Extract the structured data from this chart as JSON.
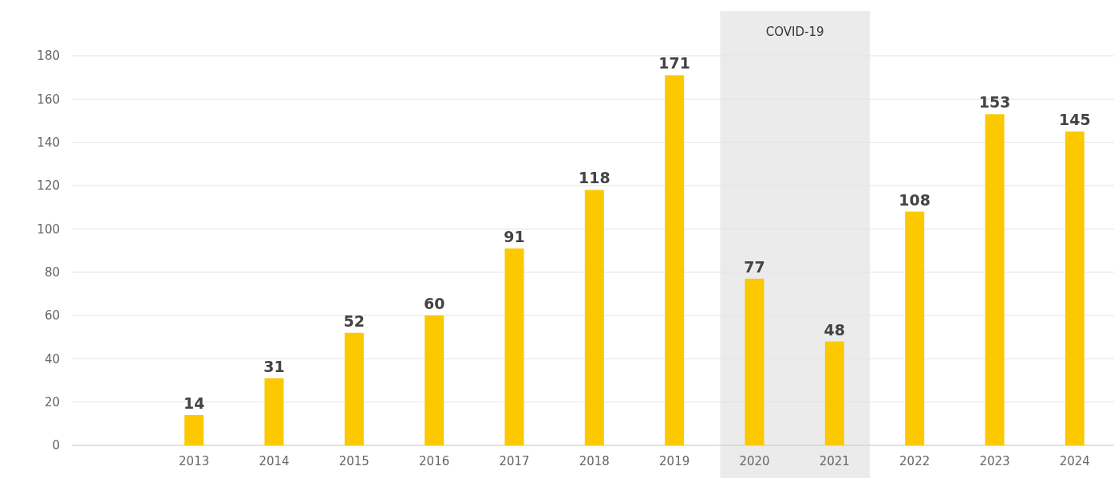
{
  "chart_data": {
    "type": "bar",
    "categories": [
      "2013",
      "2014",
      "2015",
      "2016",
      "2017",
      "2018",
      "2019",
      "2020",
      "2021",
      "2022",
      "2023",
      "2024"
    ],
    "values": [
      14,
      31,
      52,
      60,
      91,
      118,
      171,
      77,
      48,
      108,
      153,
      145
    ],
    "color": "#fcc800",
    "ylim": [
      0,
      180
    ],
    "yticks": [
      0,
      20,
      40,
      60,
      80,
      100,
      120,
      140,
      160,
      180
    ],
    "grid": "y",
    "data_labels": true,
    "bands": [
      {
        "axis": "x",
        "from": "2020",
        "to": "2021",
        "label": "COVID-19",
        "color": "#ebebeb"
      }
    ]
  }
}
